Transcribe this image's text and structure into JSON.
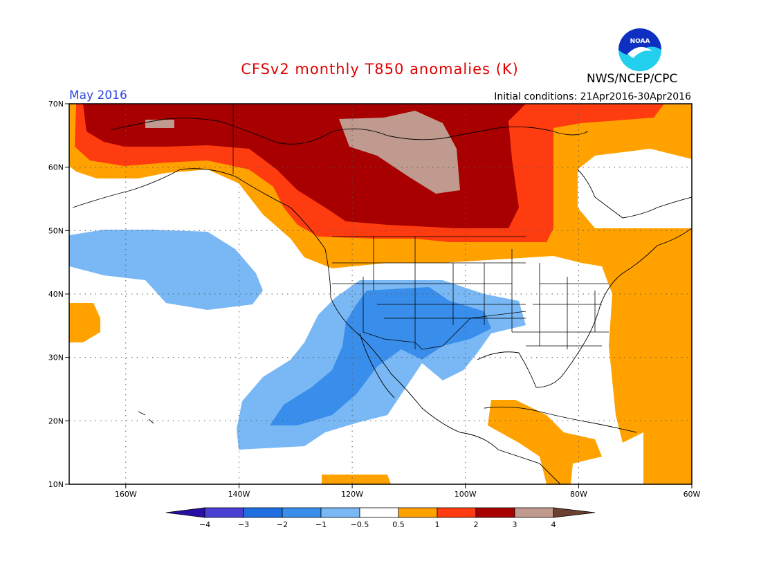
{
  "header": {
    "title": "CFSv2 monthly T850 anomalies (K)",
    "month": "May 2016",
    "initial_conditions": "Initial conditions: 21Apr2016-30Apr2016",
    "organization": "NWS/NCEP/CPC",
    "logo_text": "NOAA"
  },
  "map": {
    "lon_range": [
      -170,
      -60
    ],
    "lat_range": [
      10,
      70
    ],
    "lat_ticks": [
      "70N",
      "60N",
      "50N",
      "40N",
      "30N",
      "20N",
      "10N"
    ],
    "lon_ticks": [
      "160W",
      "140W",
      "120W",
      "100W",
      "80W",
      "60W"
    ]
  },
  "colorbar": {
    "labels": [
      "−4",
      "−3",
      "−2",
      "−1",
      "−0.5",
      "0.5",
      "1",
      "2",
      "3",
      "4"
    ],
    "colors": [
      "#2b0fa5",
      "#4a3fd3",
      "#1f6fe0",
      "#3a8eeb",
      "#79b8f5",
      "#ffffff",
      "#ffa200",
      "#ff3c10",
      "#a80000",
      "#c09a8e",
      "#6b4030"
    ]
  },
  "anomaly_colors": {
    "warm_1": "#ffa200",
    "warm_2": "#ff3c10",
    "warm_3": "#a80000",
    "warm_4": "#c09a8e",
    "cool_1": "#79b8f5",
    "cool_2": "#3a8eeb"
  }
}
